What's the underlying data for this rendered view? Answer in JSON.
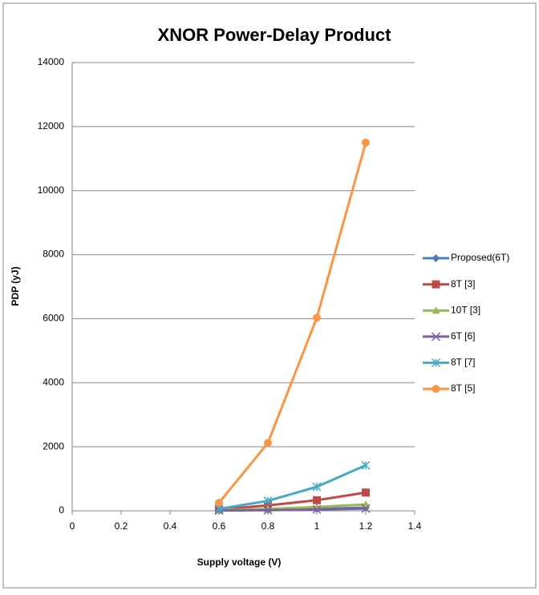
{
  "chart_data": {
    "type": "line",
    "title": "XNOR Power-Delay Product",
    "x_label": "Supply voltage (V)",
    "y_label": "PDP (yJ)",
    "x": [
      0.6,
      0.8,
      1,
      1.2
    ],
    "series": [
      {
        "name": "Proposed(6T)",
        "color": "#4a7ebb",
        "marker": "diamond",
        "values": [
          10,
          30,
          60,
          100
        ]
      },
      {
        "name": "8T [3]",
        "color": "#be4b48",
        "marker": "square",
        "values": [
          40,
          170,
          330,
          570
        ]
      },
      {
        "name": "10T [3]",
        "color": "#98b954",
        "marker": "triangle",
        "values": [
          20,
          60,
          120,
          200
        ]
      },
      {
        "name": "6T [6]",
        "color": "#7d60a0",
        "marker": "x",
        "values": [
          10,
          20,
          40,
          70
        ]
      },
      {
        "name": "8T [7]",
        "color": "#46aac5",
        "marker": "star",
        "values": [
          60,
          310,
          750,
          1420
        ]
      },
      {
        "name": "8T [5]",
        "color": "#f79646",
        "marker": "circle",
        "values": [
          250,
          2120,
          6030,
          11500
        ]
      }
    ],
    "xlim": [
      0,
      1.4
    ],
    "xticks": [
      0,
      0.2,
      0.4,
      0.6,
      0.8,
      1,
      1.2,
      1.4
    ],
    "ylim": [
      0,
      14000
    ],
    "yticks": [
      0,
      2000,
      4000,
      6000,
      8000,
      10000,
      12000,
      14000
    ],
    "grid": true,
    "legend": "right"
  }
}
